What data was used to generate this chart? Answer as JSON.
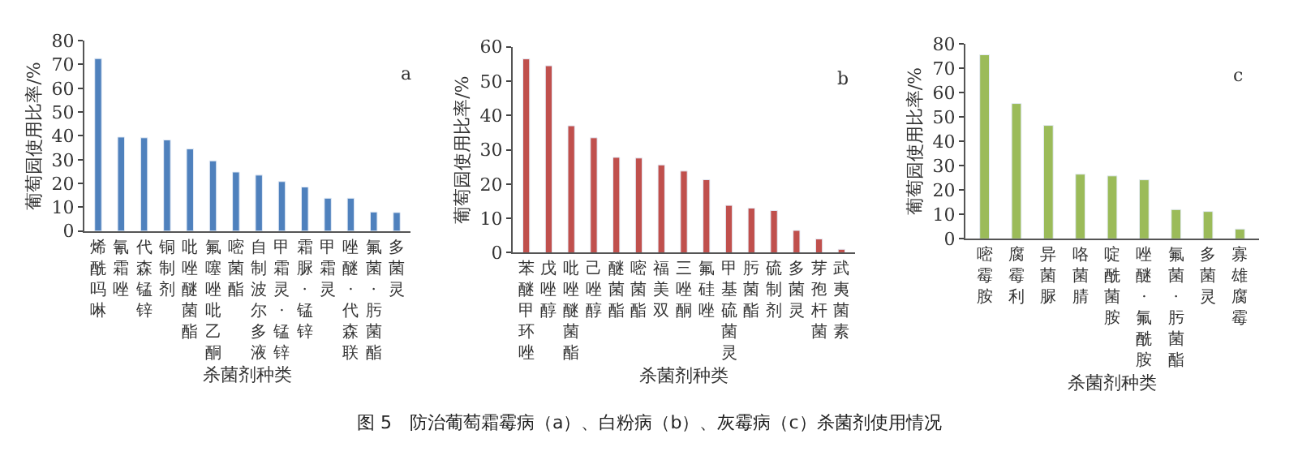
{
  "chart_data": [
    {
      "type": "bar",
      "xlabel": "杀菌剂种类",
      "ylabel": "葡萄园使用比率/%",
      "categories": [
        "烯酰吗啉",
        "氰霜唑",
        "代森锰锌",
        "铜制剂",
        "吡唑醚菌酯",
        "氟噻唑吡乙酮",
        "嘧菌酯",
        "自制波尔多液",
        "甲霜灵·锰锌",
        "霜脲·锰锌",
        "甲霜灵",
        "唑醚·代森联",
        "氟菌·肟菌酯",
        "多菌灵"
      ],
      "series": [
        {
          "color": "#4f81bd",
          "values": [
            72.5,
            39.5,
            39.2,
            38.3,
            34.5,
            29.5,
            24.8,
            23.5,
            20.8,
            18.5,
            13.8,
            13.8,
            8,
            7.8
          ]
        }
      ],
      "ylim": [
        0,
        80
      ],
      "yticks": [
        0,
        10,
        20,
        30,
        40,
        50,
        60,
        70,
        80
      ],
      "annotations": [
        "a",
        "图 5　防治葡萄霜霉病（a）、白粉病（b）、灰霉病（c）杀菌剂使用情况"
      ]
    },
    {
      "type": "bar",
      "xlabel": "杀菌剂种类",
      "ylabel": "葡萄园使用比率/%",
      "categories": [
        "苯醚甲环唑",
        "戊唑醇",
        "吡唑醚菌酯",
        "己唑醇",
        "醚菌酯",
        "嘧菌酯",
        "福美双",
        "三唑酮",
        "氟硅唑",
        "甲基硫菌灵",
        "肟菌酯",
        "硫制剂",
        "多菌灵",
        "芽孢杆菌",
        "武夷菌素"
      ],
      "series": [
        {
          "color": "#c0504d",
          "values": [
            56.5,
            54.5,
            37,
            33.5,
            27.8,
            27.6,
            25.6,
            23.8,
            21.3,
            13.8,
            13,
            12.3,
            6.5,
            4,
            1
          ]
        }
      ],
      "ylim": [
        0,
        60
      ],
      "yticks": [
        0,
        10,
        20,
        30,
        40,
        50,
        60
      ],
      "annotations": [
        "b"
      ]
    },
    {
      "type": "bar",
      "xlabel": "杀菌剂种类",
      "ylabel": "葡萄园使用比率/%",
      "categories": [
        "嘧霉胺",
        "腐霉利",
        "异菌脲",
        "咯菌腈",
        "啶酰菌胺",
        "唑醚·氟酰胺",
        "氟菌·肟菌酯",
        "多菌灵",
        "寡雄腐霉"
      ],
      "series": [
        {
          "color": "#9bbb59",
          "values": [
            75.5,
            55.5,
            46.5,
            26.5,
            25.8,
            24.2,
            12,
            11.2,
            4
          ]
        }
      ],
      "ylim": [
        0,
        80
      ],
      "yticks": [
        0,
        10,
        20,
        30,
        40,
        50,
        60,
        70,
        80
      ],
      "annotations": [
        "c"
      ]
    }
  ]
}
